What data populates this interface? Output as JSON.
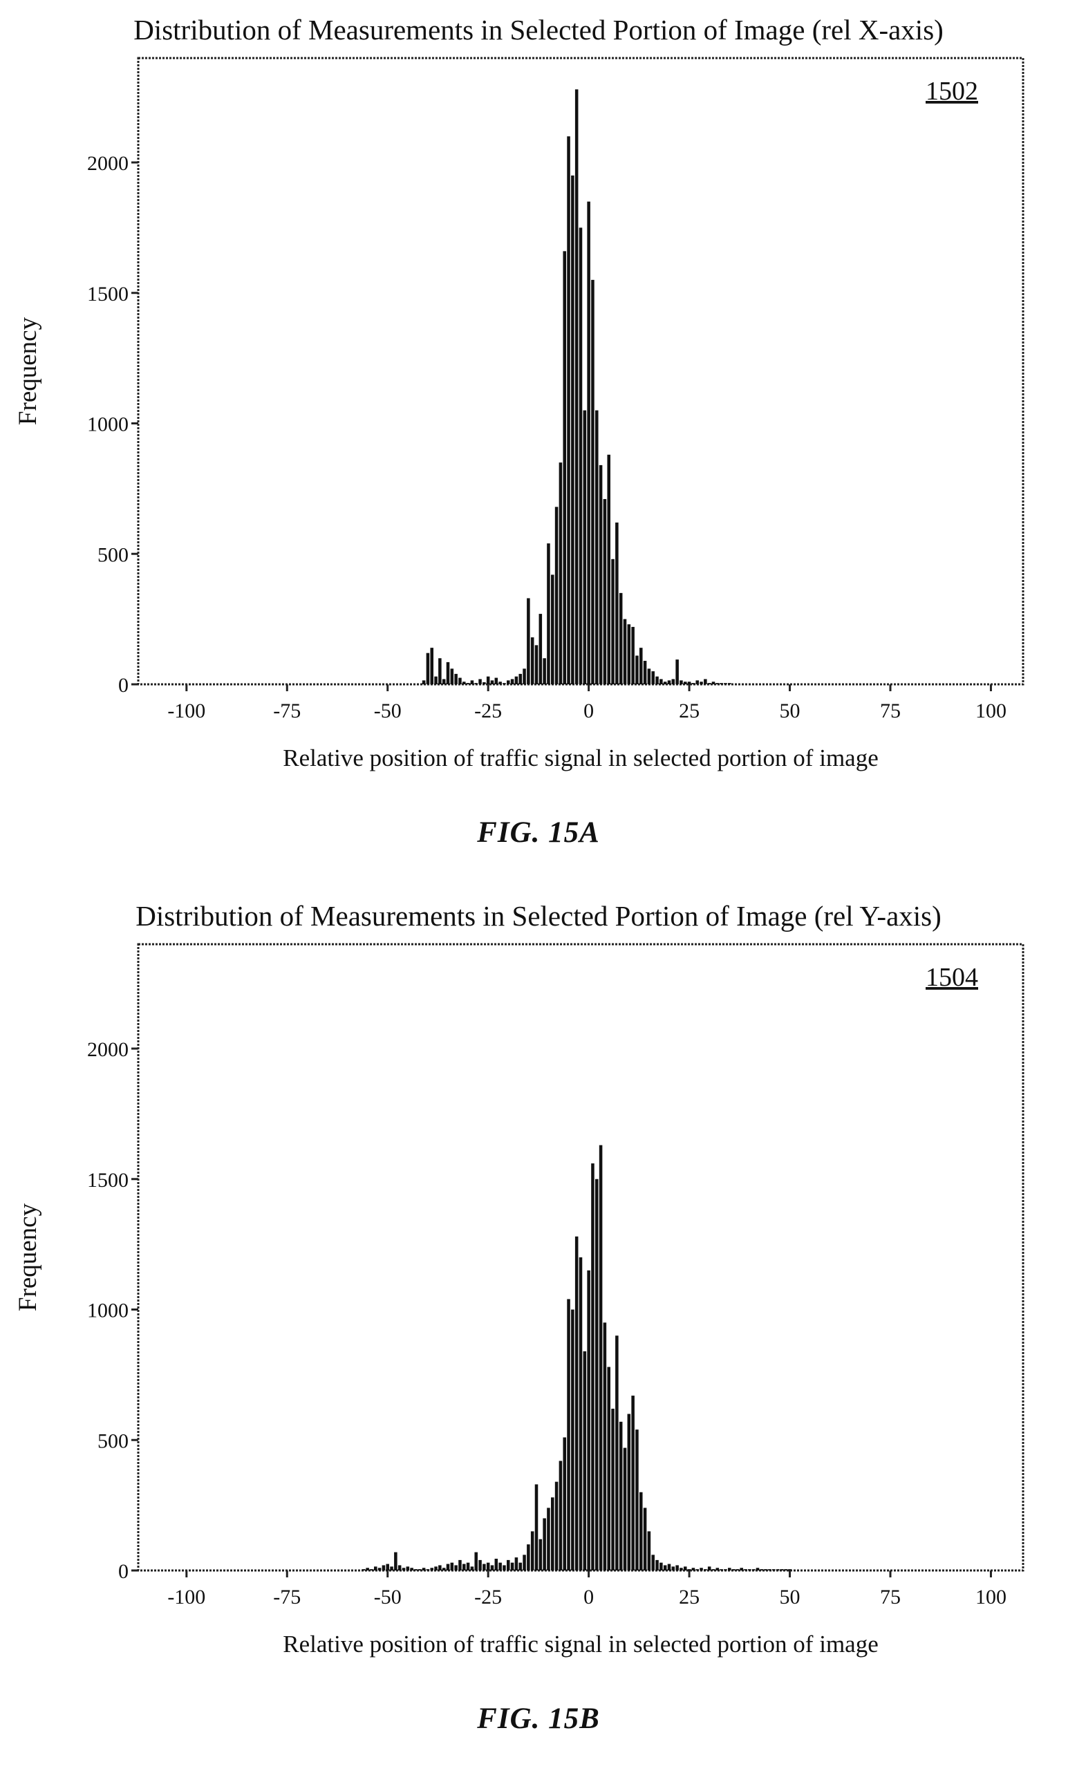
{
  "figures": [
    {
      "id": "fig-a",
      "caption": "FIG. 15A",
      "ref_label": "1502"
    },
    {
      "id": "fig-b",
      "caption": "FIG. 15B",
      "ref_label": "1504"
    }
  ],
  "chart_data": [
    {
      "type": "bar",
      "title": "Distribution of Measurements in Selected Portion of Image (rel X-axis)",
      "xlabel": "Relative position of traffic signal in selected portion of image",
      "ylabel": "Frequency",
      "xlim": [
        -112,
        108
      ],
      "ylim": [
        0,
        2400
      ],
      "xticks": [
        -100,
        -75,
        -50,
        -25,
        0,
        25,
        50,
        75,
        100
      ],
      "yticks": [
        0,
        500,
        1000,
        1500,
        2000
      ],
      "grid": false,
      "color": "#111111",
      "x": [
        -41,
        -40,
        -39,
        -38,
        -37,
        -36,
        -35,
        -34,
        -33,
        -32,
        -31,
        -30,
        -29,
        -28,
        -27,
        -26,
        -25,
        -24,
        -23,
        -22,
        -21,
        -20,
        -19,
        -18,
        -17,
        -16,
        -15,
        -14,
        -13,
        -12,
        -11,
        -10,
        -9,
        -8,
        -7,
        -6,
        -5,
        -4,
        -3,
        -2,
        -1,
        0,
        1,
        2,
        3,
        4,
        5,
        6,
        7,
        8,
        9,
        10,
        11,
        12,
        13,
        14,
        15,
        16,
        17,
        18,
        19,
        20,
        21,
        22,
        23,
        24,
        25,
        26,
        27,
        28,
        29,
        30,
        31,
        32,
        33,
        34,
        35
      ],
      "values": [
        15,
        120,
        140,
        30,
        100,
        20,
        85,
        60,
        40,
        25,
        10,
        5,
        15,
        5,
        20,
        8,
        30,
        15,
        25,
        10,
        5,
        15,
        20,
        30,
        40,
        60,
        330,
        180,
        150,
        270,
        100,
        540,
        420,
        680,
        850,
        1660,
        2100,
        1950,
        2280,
        1750,
        1050,
        1850,
        1550,
        1050,
        840,
        710,
        880,
        480,
        620,
        350,
        250,
        230,
        220,
        110,
        140,
        90,
        60,
        50,
        30,
        20,
        10,
        15,
        20,
        95,
        15,
        10,
        10,
        5,
        15,
        10,
        20,
        5,
        10,
        5,
        5,
        5,
        5
      ]
    },
    {
      "type": "bar",
      "title": "Distribution of Measurements in Selected Portion of Image (rel Y-axis)",
      "xlabel": "Relative position of traffic signal in selected portion of image",
      "ylabel": "Frequency",
      "xlim": [
        -112,
        108
      ],
      "ylim": [
        0,
        2400
      ],
      "xticks": [
        -100,
        -75,
        -50,
        -25,
        0,
        25,
        50,
        75,
        100
      ],
      "yticks": [
        0,
        500,
        1000,
        1500,
        2000
      ],
      "grid": false,
      "color": "#111111",
      "x": [
        -56,
        -55,
        -54,
        -53,
        -52,
        -51,
        -50,
        -49,
        -48,
        -47,
        -46,
        -45,
        -44,
        -43,
        -42,
        -41,
        -40,
        -39,
        -38,
        -37,
        -36,
        -35,
        -34,
        -33,
        -32,
        -31,
        -30,
        -29,
        -28,
        -27,
        -26,
        -25,
        -24,
        -23,
        -22,
        -21,
        -20,
        -19,
        -18,
        -17,
        -16,
        -15,
        -14,
        -13,
        -12,
        -11,
        -10,
        -9,
        -8,
        -7,
        -6,
        -5,
        -4,
        -3,
        -2,
        -1,
        0,
        1,
        2,
        3,
        4,
        5,
        6,
        7,
        8,
        9,
        10,
        11,
        12,
        13,
        14,
        15,
        16,
        17,
        18,
        19,
        20,
        21,
        22,
        23,
        24,
        25,
        26,
        27,
        28,
        29,
        30,
        31,
        32,
        33,
        34,
        35,
        36,
        37,
        38,
        39,
        40,
        41,
        42,
        43,
        44,
        45,
        46,
        47,
        48,
        49,
        50
      ],
      "values": [
        5,
        10,
        5,
        15,
        10,
        20,
        25,
        15,
        70,
        20,
        10,
        15,
        10,
        5,
        5,
        10,
        5,
        10,
        15,
        20,
        10,
        25,
        30,
        20,
        40,
        25,
        30,
        15,
        70,
        40,
        25,
        30,
        20,
        45,
        30,
        20,
        40,
        30,
        50,
        30,
        60,
        100,
        150,
        330,
        120,
        200,
        240,
        280,
        340,
        420,
        510,
        1040,
        1000,
        1280,
        1200,
        840,
        1150,
        1560,
        1500,
        1630,
        950,
        780,
        620,
        900,
        570,
        470,
        600,
        670,
        540,
        300,
        240,
        150,
        60,
        40,
        30,
        20,
        25,
        15,
        20,
        10,
        15,
        5,
        10,
        5,
        10,
        5,
        15,
        5,
        10,
        5,
        5,
        10,
        5,
        5,
        10,
        5,
        5,
        5,
        10,
        5,
        5,
        5,
        5,
        5,
        5,
        5,
        5
      ]
    }
  ]
}
